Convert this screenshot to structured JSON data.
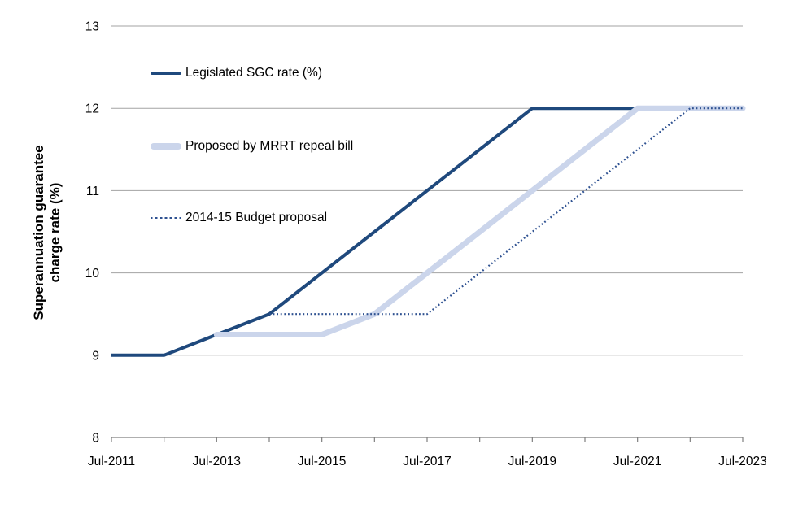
{
  "chart_data": {
    "type": "line",
    "title": "",
    "ylabel_line1": "Superannuation guarantee",
    "ylabel_line2": "charge rate (%)",
    "xlabel": "",
    "ylim": [
      8,
      13
    ],
    "xlim_years": [
      2011.5,
      2023.5
    ],
    "grid": "horizontal-only",
    "legend_position": "inside-top-left",
    "y_ticks": [
      13,
      12,
      11,
      10,
      9,
      8
    ],
    "x_tick_labels": [
      {
        "year": 2011.5,
        "label": "Jul-2011"
      },
      {
        "year": 2013.5,
        "label": "Jul-2013"
      },
      {
        "year": 2015.5,
        "label": "Jul-2015"
      },
      {
        "year": 2017.5,
        "label": "Jul-2017"
      },
      {
        "year": 2019.5,
        "label": "Jul-2019"
      },
      {
        "year": 2021.5,
        "label": "Jul-2021"
      },
      {
        "year": 2023.5,
        "label": "Jul-2023"
      }
    ],
    "minor_tick_every_years": 1,
    "colors": {
      "gridline": "#A3A3A3",
      "axis": "#7F7F7F",
      "text": "#000000"
    },
    "series": [
      {
        "name": "Legislated SGC rate (%)",
        "style": "solid",
        "color": "#1F497D",
        "width": 4,
        "linecap": "butt",
        "points": [
          {
            "x": 2011.5,
            "y": 9
          },
          {
            "x": 2012.5,
            "y": 9
          },
          {
            "x": 2013.5,
            "y": 9.25
          },
          {
            "x": 2014.5,
            "y": 9.5
          },
          {
            "x": 2015.5,
            "y": 10
          },
          {
            "x": 2016.5,
            "y": 10.5
          },
          {
            "x": 2017.5,
            "y": 11
          },
          {
            "x": 2018.5,
            "y": 11.5
          },
          {
            "x": 2019.5,
            "y": 12
          },
          {
            "x": 2023.5,
            "y": 12
          }
        ]
      },
      {
        "name": "Proposed by MRRT repeal bill",
        "style": "solid",
        "color": "#CBD5EB",
        "width": 7,
        "linecap": "round",
        "points": [
          {
            "x": 2013.5,
            "y": 9.25
          },
          {
            "x": 2015.5,
            "y": 9.25
          },
          {
            "x": 2016.5,
            "y": 9.5
          },
          {
            "x": 2017.5,
            "y": 10
          },
          {
            "x": 2018.5,
            "y": 10.5
          },
          {
            "x": 2019.5,
            "y": 11
          },
          {
            "x": 2020.5,
            "y": 11.5
          },
          {
            "x": 2021.5,
            "y": 12
          },
          {
            "x": 2023.5,
            "y": 12
          }
        ]
      },
      {
        "name": "2014-15 Budget proposal",
        "style": "dotted",
        "color": "#2E5191",
        "width": 2.2,
        "linecap": "butt",
        "points": [
          {
            "x": 2014.5,
            "y": 9.5
          },
          {
            "x": 2017.5,
            "y": 9.5
          },
          {
            "x": 2018.5,
            "y": 10
          },
          {
            "x": 2019.5,
            "y": 10.5
          },
          {
            "x": 2020.5,
            "y": 11
          },
          {
            "x": 2021.5,
            "y": 11.5
          },
          {
            "x": 2022.5,
            "y": 12
          },
          {
            "x": 2023.5,
            "y": 12
          }
        ]
      }
    ]
  }
}
